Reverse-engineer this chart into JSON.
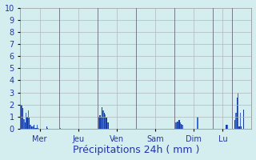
{
  "title": "Précipitations 24h ( mm )",
  "background_color": "#d4eef0",
  "plot_bg_color": "#d4eef0",
  "bar_color_dark": "#1a3a9c",
  "bar_color_light": "#3a6ad4",
  "ylim": [
    0,
    10
  ],
  "yticks": [
    0,
    1,
    2,
    3,
    4,
    5,
    6,
    7,
    8,
    9,
    10
  ],
  "day_labels": [
    "Mer",
    "Jeu",
    "Ven",
    "Sam",
    "Dim",
    "Lu"
  ],
  "grid_color": "#b0b8b8",
  "tick_label_color": "#2233aa",
  "xlabel_fontsize": 9,
  "tick_fontsize": 7,
  "values": [
    2.0,
    2.0,
    1.7,
    0.8,
    0.5,
    1.3,
    1.0,
    1.5,
    0.9,
    0.3,
    0.2,
    0.2,
    0.3,
    0.1,
    0.05,
    0.3,
    0.1,
    0.0,
    0.0,
    0.0,
    0.0,
    0.0,
    0.0,
    0.0,
    0.2,
    0.05,
    0.0,
    0.0,
    0.0,
    0.0,
    0.0,
    0.0,
    0.0,
    0.0,
    0.0,
    0.0,
    0.2,
    0.1,
    0.0,
    0.0,
    0.0,
    0.0,
    0.0,
    0.0,
    0.0,
    0.0,
    0.0,
    0.0,
    0.0,
    0.0,
    0.0,
    0.0,
    0.0,
    0.0,
    0.0,
    0.0,
    0.0,
    0.0,
    0.0,
    0.0,
    0.0,
    0.0,
    0.0,
    0.0,
    0.0,
    0.0,
    0.0,
    0.0,
    0.0,
    0.0,
    0.0,
    0.0,
    0.9,
    1.0,
    1.1,
    1.0,
    1.8,
    1.5,
    1.3,
    1.2,
    0.9,
    0.5,
    0.5,
    0.0,
    0.0,
    0.0,
    0.0,
    0.0,
    0.0,
    0.0,
    0.0,
    0.0,
    0.0,
    0.0,
    0.0,
    0.0,
    0.0,
    0.0,
    0.0,
    0.0,
    0.0,
    0.0,
    0.0,
    0.0,
    0.0,
    0.0,
    0.0,
    0.0,
    0.0,
    0.0,
    0.0,
    0.0,
    0.0,
    0.0,
    0.0,
    0.0,
    0.0,
    0.0,
    0.0,
    0.0,
    0.0,
    0.0,
    0.0,
    0.0,
    0.0,
    0.0,
    0.0,
    0.0,
    0.0,
    0.0,
    0.0,
    0.0,
    0.0,
    0.0,
    0.0,
    0.0,
    0.0,
    0.0,
    0.0,
    0.0,
    0.0,
    0.0,
    0.0,
    0.0,
    0.4,
    0.5,
    0.6,
    0.6,
    0.7,
    0.5,
    0.4,
    0.3,
    0.0,
    0.0,
    0.0,
    0.0,
    0.0,
    0.0,
    0.0,
    0.0,
    0.0,
    0.0,
    0.0,
    0.0,
    0.0,
    1.0,
    0.0,
    0.0,
    0.0,
    0.0,
    0.0,
    0.0,
    0.0,
    0.0,
    0.0,
    0.0,
    0.0,
    0.0,
    0.0,
    0.0,
    0.0,
    0.0,
    0.0,
    0.0,
    0.0,
    0.0,
    0.0,
    0.0,
    0.0,
    0.0,
    0.0,
    0.0,
    0.3,
    0.3,
    0.0,
    0.0,
    0.0,
    0.0,
    0.0,
    0.0,
    0.7,
    1.3,
    2.6,
    3.0,
    0.2,
    1.3,
    0.2,
    0.0,
    1.6,
    0.0,
    0.0,
    0.0,
    0.0,
    0.0,
    0.0,
    0.0
  ],
  "n_per_day": 36,
  "n_days": 6,
  "day_separator_indices": [
    36,
    72,
    108,
    144,
    180,
    198
  ]
}
